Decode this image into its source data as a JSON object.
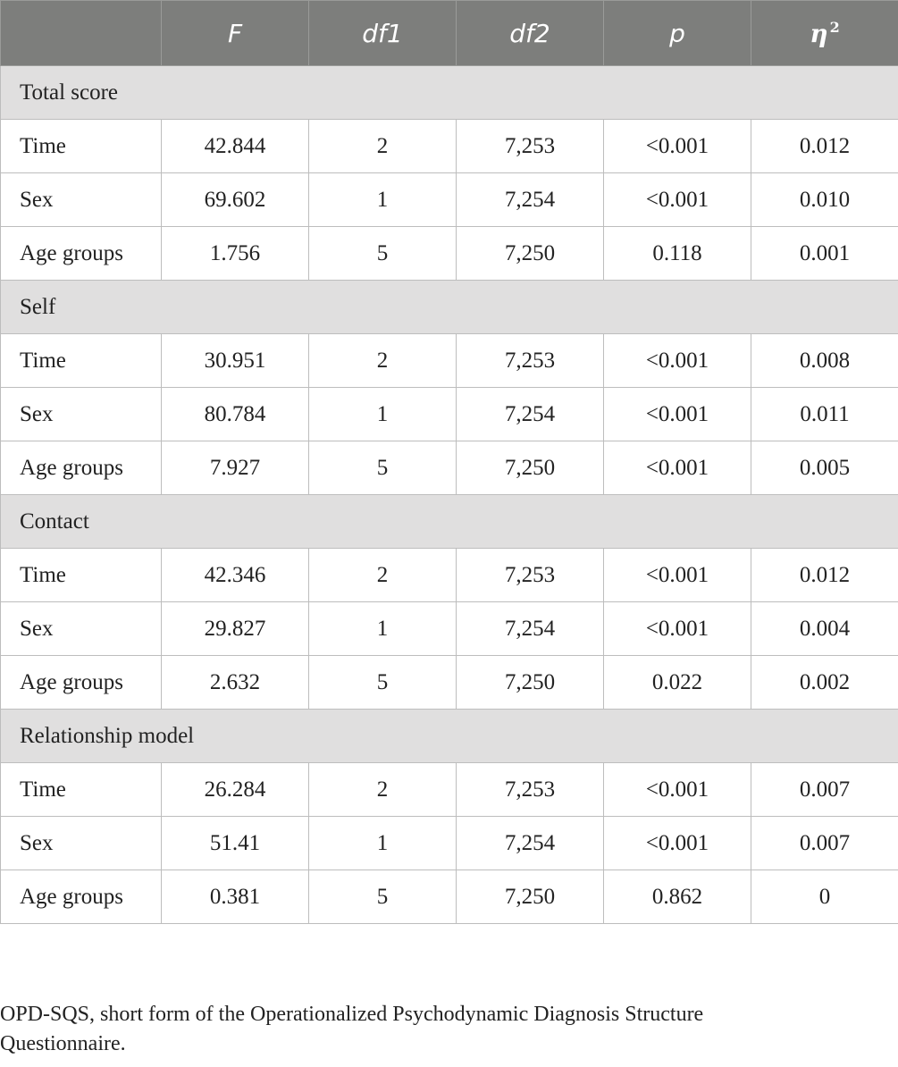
{
  "header": {
    "col0": "",
    "col1": "F",
    "col2": "df1",
    "col3": "df2",
    "col4": "p",
    "col5_base": "η",
    "col5_sup": "2"
  },
  "groups": [
    {
      "title": "Total score",
      "rows": [
        {
          "label": "Time",
          "F": "42.844",
          "df1": "2",
          "df2": "7,253",
          "p": "<0.001",
          "eta2": "0.012"
        },
        {
          "label": "Sex",
          "F": "69.602",
          "df1": "1",
          "df2": "7,254",
          "p": "<0.001",
          "eta2": "0.010"
        },
        {
          "label": "Age groups",
          "F": "1.756",
          "df1": "5",
          "df2": "7,250",
          "p": "0.118",
          "eta2": "0.001"
        }
      ]
    },
    {
      "title": "Self",
      "rows": [
        {
          "label": "Time",
          "F": "30.951",
          "df1": "2",
          "df2": "7,253",
          "p": "<0.001",
          "eta2": "0.008"
        },
        {
          "label": "Sex",
          "F": "80.784",
          "df1": "1",
          "df2": "7,254",
          "p": "<0.001",
          "eta2": "0.011"
        },
        {
          "label": "Age groups",
          "F": "7.927",
          "df1": "5",
          "df2": "7,250",
          "p": "<0.001",
          "eta2": "0.005"
        }
      ]
    },
    {
      "title": "Contact",
      "rows": [
        {
          "label": "Time",
          "F": "42.346",
          "df1": "2",
          "df2": "7,253",
          "p": "<0.001",
          "eta2": "0.012"
        },
        {
          "label": "Sex",
          "F": "29.827",
          "df1": "1",
          "df2": "7,254",
          "p": "<0.001",
          "eta2": "0.004"
        },
        {
          "label": "Age groups",
          "F": "2.632",
          "df1": "5",
          "df2": "7,250",
          "p": "0.022",
          "eta2": "0.002"
        }
      ]
    },
    {
      "title": "Relationship model",
      "rows": [
        {
          "label": "Time",
          "F": "26.284",
          "df1": "2",
          "df2": "7,253",
          "p": "<0.001",
          "eta2": "0.007"
        },
        {
          "label": "Sex",
          "F": "51.41",
          "df1": "1",
          "df2": "7,254",
          "p": "<0.001",
          "eta2": "0.007"
        },
        {
          "label": "Age groups",
          "F": "0.381",
          "df1": "5",
          "df2": "7,250",
          "p": "0.862",
          "eta2": "0"
        }
      ]
    }
  ],
  "footnote": {
    "line1": "OPD-SQS, short form of the Operationalized Psychodynamic Diagnosis Structure",
    "line2": "Questionnaire."
  }
}
